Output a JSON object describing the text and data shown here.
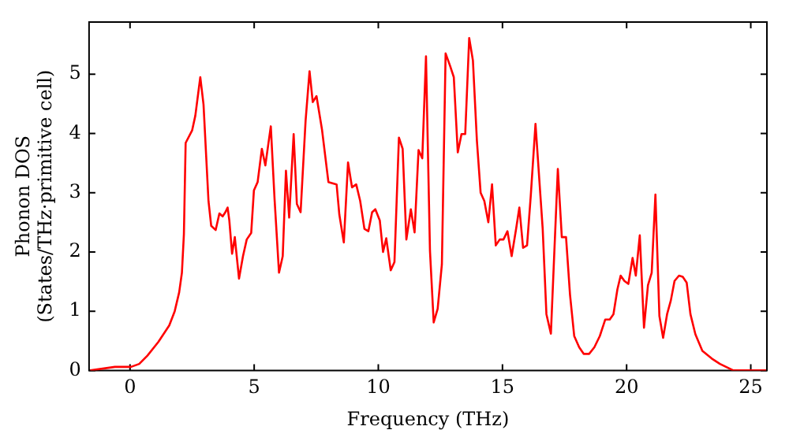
{
  "chart_data": {
    "type": "line",
    "xlabel": "Frequency (THz)",
    "ylabel": "Phonon DOS\n(States/THz·primitive cell)",
    "xlim": [
      -1.65,
      25.65
    ],
    "ylim": [
      0,
      5.88
    ],
    "xticks": [
      0,
      5,
      10,
      15,
      20,
      25
    ],
    "yticks": [
      0,
      1,
      2,
      3,
      4,
      5
    ],
    "marker": "none",
    "line_style": "solid",
    "legend": false,
    "series": [
      {
        "color": "#ff0000",
        "x": [
          -1.6,
          -0.61,
          0.04,
          0.37,
          0.7,
          1.14,
          1.58,
          1.8,
          1.98,
          2.09,
          2.17,
          2.24,
          2.5,
          2.63,
          2.83,
          2.96,
          3.16,
          3.27,
          3.45,
          3.6,
          3.73,
          3.84,
          3.93,
          4.0,
          4.11,
          4.22,
          4.28,
          4.39,
          4.55,
          4.7,
          4.88,
          4.99,
          5.14,
          5.31,
          5.45,
          5.67,
          5.82,
          6.0,
          6.15,
          6.28,
          6.41,
          6.59,
          6.72,
          6.87,
          7.07,
          7.23,
          7.36,
          7.51,
          7.73,
          7.99,
          8.32,
          8.43,
          8.61,
          8.78,
          8.94,
          9.11,
          9.27,
          9.44,
          9.6,
          9.75,
          9.88,
          10.06,
          10.19,
          10.32,
          10.5,
          10.65,
          10.83,
          10.98,
          11.13,
          11.31,
          11.46,
          11.62,
          11.77,
          11.92,
          12.08,
          12.23,
          12.39,
          12.56,
          12.71,
          12.89,
          13.04,
          13.2,
          13.35,
          13.5,
          13.66,
          13.81,
          13.97,
          14.12,
          14.27,
          14.43,
          14.58,
          14.73,
          14.89,
          15.04,
          15.2,
          15.37,
          15.55,
          15.68,
          15.83,
          15.99,
          16.14,
          16.33,
          16.62,
          16.77,
          16.95,
          17.23,
          17.39,
          17.56,
          17.72,
          17.89,
          18.09,
          18.27,
          18.49,
          18.7,
          18.92,
          19.14,
          19.32,
          19.47,
          19.63,
          19.76,
          19.91,
          20.07,
          20.24,
          20.37,
          20.53,
          20.7,
          20.86,
          21.01,
          21.16,
          21.32,
          21.47,
          21.63,
          21.78,
          21.93,
          22.11,
          22.26,
          22.42,
          22.57,
          22.77,
          23.05,
          23.43,
          23.76,
          24.3,
          25.62
        ],
        "values": [
          0,
          0.06,
          0.06,
          0.11,
          0.25,
          0.48,
          0.76,
          1.0,
          1.32,
          1.65,
          2.3,
          3.84,
          4.05,
          4.3,
          4.95,
          4.49,
          2.86,
          2.44,
          2.37,
          2.65,
          2.6,
          2.67,
          2.75,
          2.53,
          1.97,
          2.25,
          2.0,
          1.55,
          1.93,
          2.21,
          2.32,
          3.04,
          3.18,
          3.74,
          3.46,
          4.12,
          2.9,
          1.65,
          1.93,
          3.37,
          2.58,
          3.99,
          2.81,
          2.67,
          4.21,
          5.05,
          4.53,
          4.63,
          4.07,
          3.18,
          3.14,
          2.63,
          2.16,
          3.51,
          3.09,
          3.14,
          2.86,
          2.39,
          2.35,
          2.67,
          2.72,
          2.53,
          2.0,
          2.23,
          1.69,
          1.83,
          3.93,
          3.74,
          2.21,
          2.72,
          2.33,
          3.72,
          3.58,
          5.3,
          2.02,
          0.81,
          1.04,
          1.79,
          5.35,
          5.14,
          4.95,
          3.68,
          3.99,
          3.99,
          5.61,
          5.23,
          3.88,
          3.0,
          2.86,
          2.5,
          3.14,
          2.11,
          2.21,
          2.21,
          2.35,
          1.93,
          2.39,
          2.75,
          2.07,
          2.11,
          2.95,
          4.16,
          2.39,
          0.95,
          0.62,
          3.4,
          2.25,
          2.25,
          1.28,
          0.58,
          0.39,
          0.28,
          0.28,
          0.39,
          0.58,
          0.86,
          0.86,
          0.95,
          1.37,
          1.6,
          1.51,
          1.46,
          1.9,
          1.6,
          2.28,
          0.72,
          1.44,
          1.65,
          2.97,
          0.92,
          0.55,
          0.95,
          1.18,
          1.51,
          1.6,
          1.58,
          1.48,
          0.95,
          0.61,
          0.33,
          0.2,
          0.11,
          0,
          0
        ]
      }
    ]
  }
}
